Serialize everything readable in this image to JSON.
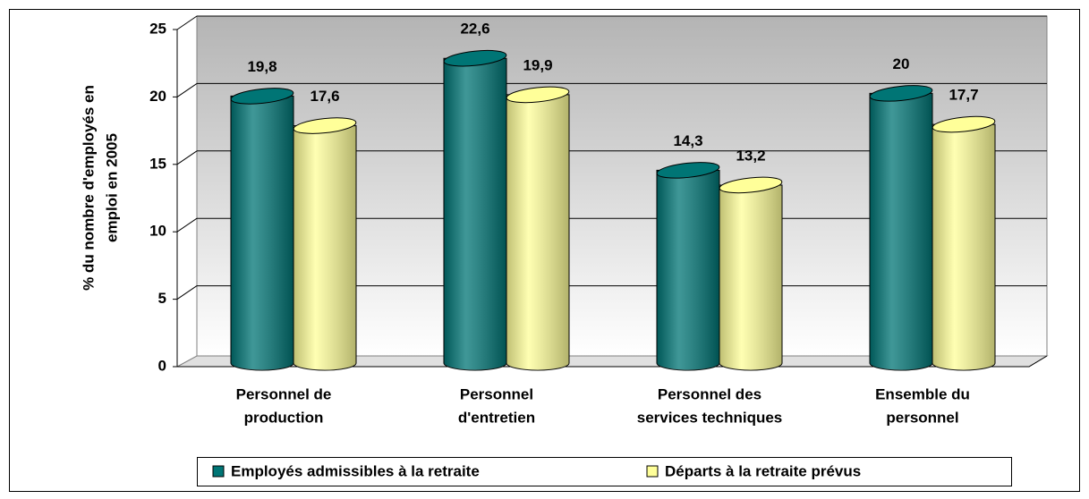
{
  "chart_data": {
    "type": "bar",
    "ylabel": [
      "% du nombre d'employés en",
      "emploi en 2005"
    ],
    "categories": [
      [
        "Personnel de",
        "production"
      ],
      [
        "Personnel",
        "d'entretien"
      ],
      [
        "Personnel des",
        "services techniques"
      ],
      [
        "Ensemble du",
        "personnel"
      ]
    ],
    "series": [
      {
        "name": "Employés admissibles à la retraite",
        "color": "#007575",
        "values": [
          19.8,
          22.6,
          14.3,
          20
        ],
        "value_labels": [
          "19,8",
          "22,6",
          "14,3",
          "20"
        ]
      },
      {
        "name": "Départs à la retraite prévus",
        "color": "#ffff99",
        "values": [
          17.6,
          19.9,
          13.2,
          17.7
        ],
        "value_labels": [
          "17,6",
          "19,9",
          "13,2",
          "17,7"
        ]
      }
    ],
    "ylim": [
      0,
      25
    ],
    "yticks": [
      0,
      5,
      10,
      15,
      20,
      25
    ],
    "grid": true,
    "legend": "bottom"
  }
}
